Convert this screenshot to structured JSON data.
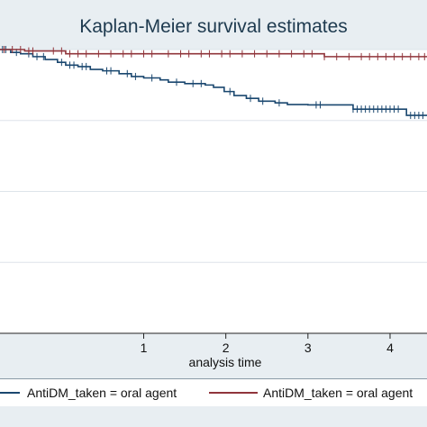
{
  "chart_data": {
    "type": "line",
    "title": "Kaplan-Meier survival estimates",
    "xlabel": "analysis time",
    "ylabel": "",
    "xticks": [
      "1",
      "2",
      "3",
      "4"
    ],
    "xlim": [
      -0.75,
      4.45
    ],
    "ylim": [
      0,
      1
    ],
    "grid": true,
    "legend_position": "bottom",
    "series": [
      {
        "name": "AntiDM_taken = oral agent",
        "color": "#1a476f",
        "steps": [
          [
            -0.75,
            1.0
          ],
          [
            -0.62,
            0.99
          ],
          [
            -0.5,
            0.985
          ],
          [
            -0.35,
            0.975
          ],
          [
            -0.2,
            0.965
          ],
          [
            -0.05,
            0.955
          ],
          [
            0.05,
            0.945
          ],
          [
            0.2,
            0.94
          ],
          [
            0.35,
            0.93
          ],
          [
            0.5,
            0.925
          ],
          [
            0.7,
            0.915
          ],
          [
            0.85,
            0.905
          ],
          [
            1.0,
            0.9
          ],
          [
            1.2,
            0.893
          ],
          [
            1.3,
            0.885
          ],
          [
            1.5,
            0.88
          ],
          [
            1.75,
            0.875
          ],
          [
            1.85,
            0.867
          ],
          [
            1.98,
            0.852
          ],
          [
            2.1,
            0.838
          ],
          [
            2.25,
            0.828
          ],
          [
            2.4,
            0.818
          ],
          [
            2.6,
            0.812
          ],
          [
            2.75,
            0.806
          ],
          [
            3.0,
            0.805
          ],
          [
            3.55,
            0.79
          ],
          [
            4.2,
            0.768
          ],
          [
            4.45,
            0.768
          ]
        ],
        "censor_times": [
          -0.72,
          -0.68,
          -0.55,
          -0.4,
          -0.3,
          -0.22,
          0.0,
          0.1,
          0.15,
          0.25,
          0.3,
          0.55,
          0.6,
          0.8,
          0.9,
          1.1,
          1.4,
          1.6,
          1.7,
          2.05,
          2.3,
          2.45,
          2.65,
          3.1,
          3.15,
          3.55,
          3.6,
          3.65,
          3.7,
          3.75,
          3.8,
          3.85,
          3.9,
          3.95,
          4.0,
          4.05,
          4.1,
          4.25,
          4.3,
          4.35,
          4.4
        ]
      },
      {
        "name": "AntiDM_taken = oral agent",
        "color": "#90353b",
        "steps": [
          [
            -0.75,
            1.0
          ],
          [
            -0.45,
            0.995
          ],
          [
            0.05,
            0.985
          ],
          [
            3.2,
            0.975
          ],
          [
            4.45,
            0.975
          ]
        ],
        "censor_times": [
          -0.7,
          -0.6,
          -0.5,
          -0.4,
          -0.35,
          -0.1,
          0.0,
          0.1,
          0.2,
          0.3,
          0.45,
          0.6,
          0.75,
          0.85,
          1.0,
          1.1,
          1.3,
          1.45,
          1.55,
          1.7,
          1.8,
          1.95,
          2.05,
          2.2,
          2.35,
          2.5,
          2.65,
          2.8,
          2.95,
          3.05,
          3.2,
          3.35,
          3.5,
          3.65,
          3.75,
          3.85,
          3.95,
          4.05,
          4.15,
          4.25,
          4.35,
          4.42
        ]
      }
    ]
  }
}
